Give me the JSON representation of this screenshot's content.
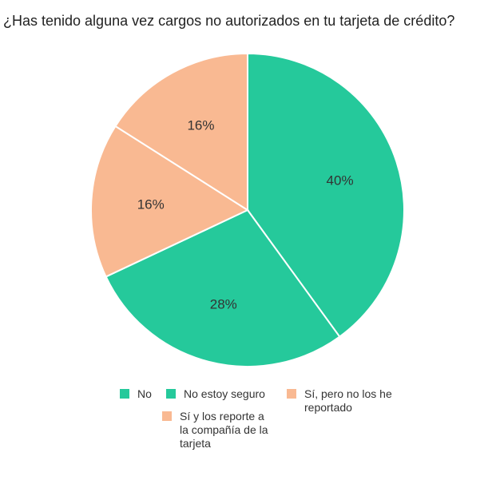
{
  "chart_data": {
    "type": "pie",
    "title": "¿Has tenido alguna vez cargos no autorizados en tu tarjeta de crédito?",
    "slices": [
      {
        "label": "No",
        "value": 40,
        "display": "40%",
        "color": "#25C99B"
      },
      {
        "label": "No estoy seguro",
        "value": 28,
        "display": "28%",
        "color": "#25C99B"
      },
      {
        "label": "Sí, pero no los he reportado",
        "value": 16,
        "display": "16%",
        "color": "#F9B992"
      },
      {
        "label": "Sí y los reporte a la compañía de la tarjeta",
        "value": 16,
        "display": "16%",
        "color": "#F9B992"
      }
    ],
    "legend_position": "bottom"
  }
}
